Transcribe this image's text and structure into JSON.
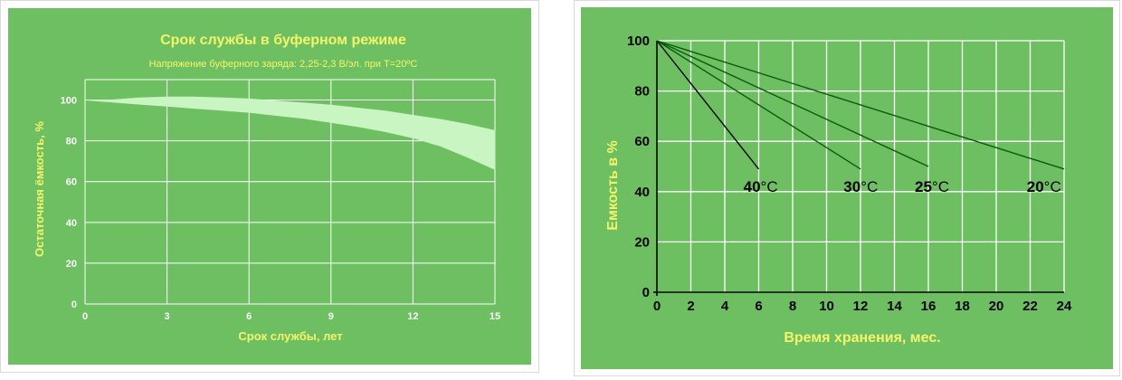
{
  "chart_data": [
    {
      "type": "area",
      "title": "Срок службы в буферном режиме",
      "subtitle": "Напряжение буферного заряда: 2,25-2,3 В/эл. при T=20ºC",
      "xlabel": "Срок службы, лет",
      "ylabel": "Остаточная ёмкость, %",
      "xlim": [
        0,
        15
      ],
      "ylim": [
        0,
        110
      ],
      "xticks": [
        "0",
        "3",
        "6",
        "9",
        "12",
        "15"
      ],
      "yticks": [
        "0",
        "20",
        "40",
        "60",
        "80",
        "100"
      ],
      "grid": true,
      "background": "#6dbf61",
      "band_color": "#c9f5c3",
      "series": [
        {
          "x": [
            0,
            1,
            2,
            3,
            4,
            5,
            6,
            7,
            8,
            9,
            10,
            11,
            12,
            13,
            14,
            15
          ],
          "upper": [
            100,
            100,
            101,
            101.5,
            101.5,
            101,
            100.5,
            99.5,
            98.5,
            97.5,
            96,
            94.5,
            92.5,
            90.5,
            88,
            85
          ],
          "lower": [
            100,
            99,
            98,
            97,
            96,
            95,
            94,
            92.5,
            91,
            89,
            87,
            84.5,
            81.5,
            77.5,
            72,
            66
          ]
        }
      ]
    },
    {
      "type": "line",
      "xlabel": "Время хранения, мес.",
      "ylabel": "Емкость в %",
      "xlim": [
        0,
        24
      ],
      "ylim": [
        0,
        100
      ],
      "xticks": [
        "0",
        "2",
        "4",
        "6",
        "8",
        "10",
        "12",
        "14",
        "16",
        "18",
        "20",
        "22",
        "24"
      ],
      "yticks": [
        "0",
        "20",
        "40",
        "60",
        "80",
        "100"
      ],
      "grid": true,
      "background": "#6dbf61",
      "series": [
        {
          "label_num": "40",
          "label_unit": "°С",
          "x": [
            0,
            6
          ],
          "y": [
            100,
            49
          ],
          "color": "#000000",
          "label_at": [
            5.1,
            42
          ]
        },
        {
          "label_num": "30",
          "label_unit": "°С",
          "x": [
            0,
            12
          ],
          "y": [
            100,
            49
          ],
          "color": "#0b5a12",
          "label_at": [
            11,
            42
          ]
        },
        {
          "label_num": "25",
          "label_unit": "°С",
          "x": [
            0,
            16
          ],
          "y": [
            100,
            50
          ],
          "color": "#0b5a12",
          "label_at": [
            15.2,
            42
          ]
        },
        {
          "label_num": "20",
          "label_unit": "°С",
          "x": [
            0,
            24
          ],
          "y": [
            100,
            49
          ],
          "color": "#0b5a12",
          "label_at": [
            21.8,
            42
          ]
        }
      ]
    }
  ]
}
